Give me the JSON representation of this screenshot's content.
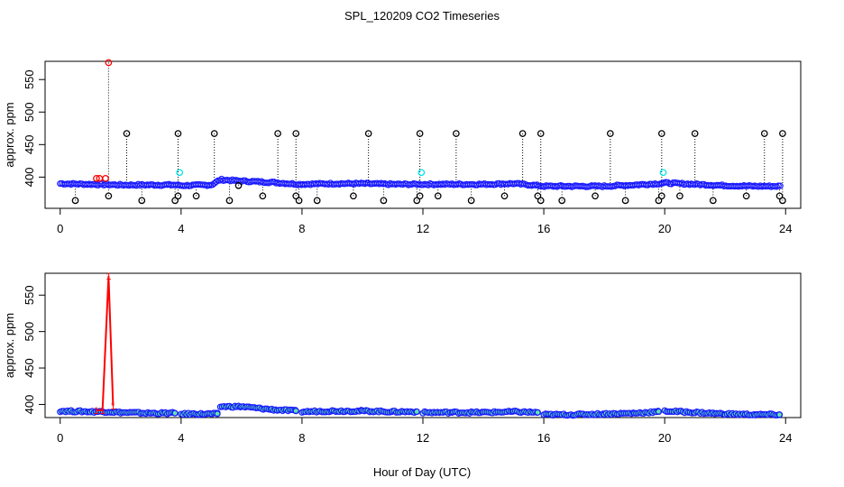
{
  "title": "SPL_120209  CO2 Timeseries",
  "xlabel": "Hour of Day (UTC)",
  "chart_data": [
    {
      "type": "scatter",
      "panel": "top",
      "ylabel": "approx. ppm",
      "xlim": [
        -0.5,
        24.5
      ],
      "ylim": [
        352,
        578
      ],
      "xticks": [
        0,
        4,
        8,
        12,
        16,
        20,
        24
      ],
      "yticks": [
        400,
        450,
        500,
        550
      ],
      "baseline_series": {
        "name": "10-second readings",
        "color": "#1a1aff",
        "x": [
          0.0,
          1.0,
          2.0,
          3.0,
          3.8,
          4.0,
          5.0,
          5.3,
          6.0,
          7.0,
          7.9,
          9.0,
          10.0,
          11.0,
          12.0,
          13.0,
          14.0,
          15.0,
          15.8,
          16.0,
          17.0,
          18.0,
          19.0,
          19.8,
          20.0,
          21.0,
          22.0,
          23.0,
          23.8
        ],
        "y": [
          390,
          389,
          388,
          388,
          388,
          387,
          388,
          396,
          394,
          392,
          389,
          390,
          390,
          389,
          389,
          389,
          389,
          390,
          387,
          386,
          386,
          386,
          388,
          390,
          391,
          389,
          387,
          386,
          386
        ]
      },
      "spike_series": {
        "name": "outliers",
        "color": "#000000",
        "x": [
          0.5,
          1.6,
          2.2,
          2.7,
          3.8,
          3.9,
          3.9,
          4.5,
          5.1,
          5.6,
          5.9,
          6.7,
          7.2,
          7.8,
          7.8,
          7.9,
          8.5,
          9.7,
          10.2,
          10.7,
          11.8,
          11.9,
          11.9,
          12.5,
          13.1,
          13.6,
          14.7,
          15.3,
          15.8,
          15.9,
          15.9,
          16.6,
          17.7,
          18.2,
          18.7,
          19.8,
          19.9,
          19.9,
          20.5,
          21.0,
          21.6,
          22.7,
          23.3,
          23.8,
          23.9,
          23.9
        ],
        "y": [
          364,
          371,
          467,
          364,
          364,
          371,
          467,
          371,
          467,
          364,
          387,
          371,
          467,
          371,
          467,
          364,
          364,
          371,
          467,
          364,
          364,
          371,
          467,
          371,
          467,
          364,
          371,
          467,
          371,
          467,
          364,
          364,
          371,
          467,
          364,
          364,
          371,
          467,
          371,
          467,
          364,
          371,
          467,
          371,
          467,
          364
        ]
      },
      "flagged_series": {
        "name": "flagged",
        "color": "#ff0000",
        "x": [
          1.2,
          1.3,
          1.5,
          1.6
        ],
        "y": [
          398,
          398,
          398,
          576
        ]
      },
      "calibration_series": {
        "name": "calibration",
        "color": "#00e5e5",
        "x": [
          3.95,
          11.95,
          19.95
        ],
        "y": [
          407,
          407,
          407
        ]
      }
    },
    {
      "type": "line",
      "panel": "bottom",
      "ylabel": "approx. ppm",
      "xlim": [
        -0.5,
        24.5
      ],
      "ylim": [
        382,
        580
      ],
      "xticks": [
        0,
        4,
        8,
        12,
        16,
        20,
        24
      ],
      "yticks": [
        400,
        450,
        500,
        550
      ],
      "series_color": "#1a1aff",
      "marker_fill": "#66ff99",
      "segments": [
        {
          "x": [
            0.0,
            1.0,
            1.6,
            2.0,
            3.0,
            3.8
          ],
          "y": [
            391,
            390,
            390,
            389,
            388,
            388
          ]
        },
        {
          "x": [
            4.0,
            4.6,
            5.2
          ],
          "y": [
            387,
            387,
            387
          ]
        },
        {
          "x": [
            5.3,
            6.0,
            7.0,
            7.8
          ],
          "y": [
            397,
            397,
            393,
            391
          ]
        },
        {
          "x": [
            8.0,
            9.0,
            10.0,
            11.0,
            11.8
          ],
          "y": [
            390,
            391,
            391,
            390,
            390
          ]
        },
        {
          "x": [
            12.0,
            13.0,
            14.0,
            15.0,
            15.8
          ],
          "y": [
            389,
            389,
            389,
            390,
            389
          ]
        },
        {
          "x": [
            16.0,
            17.0,
            18.0,
            19.0,
            19.8
          ],
          "y": [
            386,
            386,
            387,
            388,
            390
          ]
        },
        {
          "x": [
            20.0,
            21.0,
            22.0,
            23.0,
            23.8
          ],
          "y": [
            391,
            389,
            387,
            386,
            386
          ]
        }
      ],
      "flagged_series": {
        "name": "flagged",
        "color": "#ff0000",
        "marker": "1",
        "x": [
          1.2,
          1.4,
          1.6,
          1.75
        ],
        "y": [
          392,
          392,
          576,
          398
        ]
      }
    }
  ]
}
